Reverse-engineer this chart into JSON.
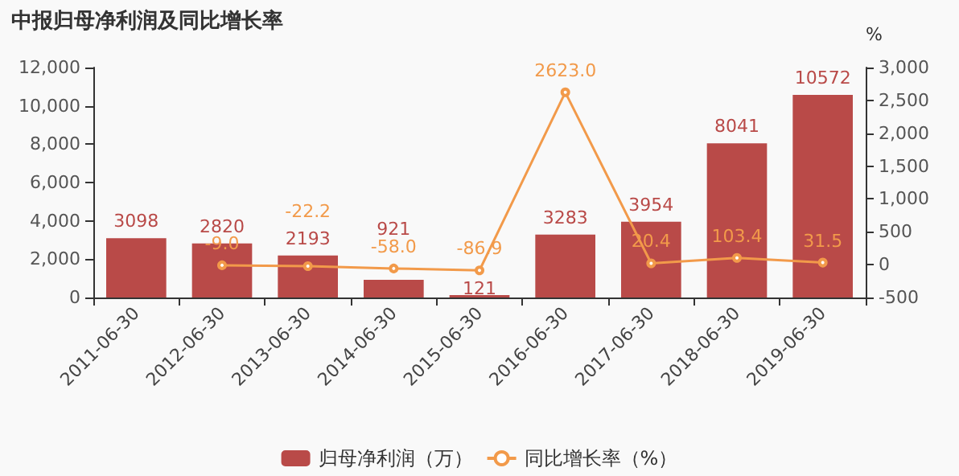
{
  "chart_data": {
    "type": "bar",
    "title": "中报归母净利润及同比增长率",
    "y2label": "%",
    "categories": [
      "2011-06-30",
      "2012-06-30",
      "2013-06-30",
      "2014-06-30",
      "2015-06-30",
      "2016-06-30",
      "2017-06-30",
      "2018-06-30",
      "2019-06-30"
    ],
    "series": [
      {
        "name": "归母净利润（万）",
        "color": "#b94a48",
        "values": [
          3098,
          2820,
          2193,
          921,
          121,
          3283,
          3954,
          8041,
          10572
        ],
        "value_labels": [
          "3098",
          "2820",
          "2193",
          "921",
          "121",
          "3283",
          "3954",
          "8041",
          "10572"
        ]
      },
      {
        "name": "同比增长率（%）",
        "type": "line",
        "axis": "y2",
        "color": "#f29a4a",
        "marker": "circle",
        "values": [
          null,
          -9.0,
          -22.2,
          -58.0,
          -86.9,
          2623.0,
          20.4,
          103.4,
          31.5
        ],
        "value_labels": [
          null,
          "-9.0",
          "-22.2",
          "-58.0",
          "-86.9",
          "2623.0",
          "20.4",
          "103.4",
          "31.5"
        ]
      }
    ],
    "ylim": [
      0,
      12000
    ],
    "yticks": [
      0,
      {
        "value": 2000,
        "label": "2,000"
      },
      {
        "value": 4000,
        "label": "4,000"
      },
      {
        "value": 6000,
        "label": "6,000"
      },
      {
        "value": 8000,
        "label": "8,000"
      },
      {
        "value": 10000,
        "label": "10,000"
      },
      {
        "value": 12000,
        "label": "12,000"
      }
    ],
    "y2lim": [
      -500,
      3000
    ],
    "y2ticks": [
      -500,
      0,
      500,
      {
        "value": 1000,
        "label": "1,000"
      },
      {
        "value": 1500,
        "label": "1,500"
      },
      {
        "value": 2000,
        "label": "2,000"
      },
      {
        "value": 2500,
        "label": "2,500"
      },
      {
        "value": 3000,
        "label": "3,000"
      }
    ],
    "grid": false,
    "legend": "bottom"
  }
}
